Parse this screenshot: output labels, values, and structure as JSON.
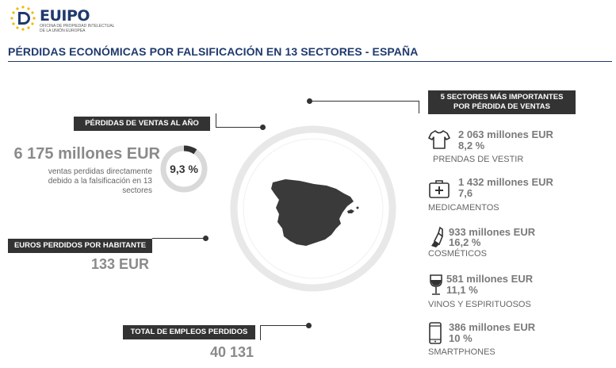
{
  "header": {
    "logo_text": "EUIPO",
    "logo_subtitle": [
      "OFICINA DE PROPIEDAD INTELECTUAL",
      "DE LA UNIÓN EUROPEA"
    ],
    "title": "PÉRDIDAS ECONÓMICAS POR FALSIFICACIÓN EN 13 SECTORES - ESPAÑA"
  },
  "sales_loss": {
    "label": "PÉRDIDAS DE VENTAS AL AÑO",
    "amount": "6 175 millones EUR",
    "description": "ventas perdidas directamente debido a la falsificación en 13 sectores",
    "percent_label": "9,3 %",
    "percent_value": 9.3
  },
  "per_capita": {
    "label": "EUROS PERDIDOS POR HABITANTE",
    "value": "133 EUR"
  },
  "jobs": {
    "label": "TOTAL DE EMPLEOS PERDIDOS",
    "value": "40 131"
  },
  "top_sectors": {
    "label_line1": "5 SECTORES MÁS IMPORTANTES",
    "label_line2": "POR PÉRDIDA DE VENTAS",
    "items": [
      {
        "amount": "2 063 millones EUR",
        "percent": "8,2 %",
        "name": "PRENDAS DE VESTIR",
        "icon": "shirt-icon"
      },
      {
        "amount": "1 432 millones EUR",
        "percent": "7,6",
        "name": "MEDICAMENTOS",
        "icon": "first-aid-kit-icon"
      },
      {
        "amount": "933 millones EUR",
        "percent": "16,2 %",
        "name": "COSMÉTICOS",
        "icon": "lipstick-icon"
      },
      {
        "amount": "581 millones EUR",
        "percent": "11,1 %",
        "name": "VINOS Y ESPIRITUOSOS",
        "icon": "wine-glass-icon"
      },
      {
        "amount": "386 millones EUR",
        "percent": "10 %",
        "name": "SMARTPHONES",
        "icon": "smartphone-icon"
      }
    ]
  },
  "colors": {
    "brand_blue": "#1f3a6e",
    "dark": "#333333",
    "grey_text": "#8a8a8a",
    "ring": "#e8e8e8",
    "gold": "#f2b705"
  }
}
